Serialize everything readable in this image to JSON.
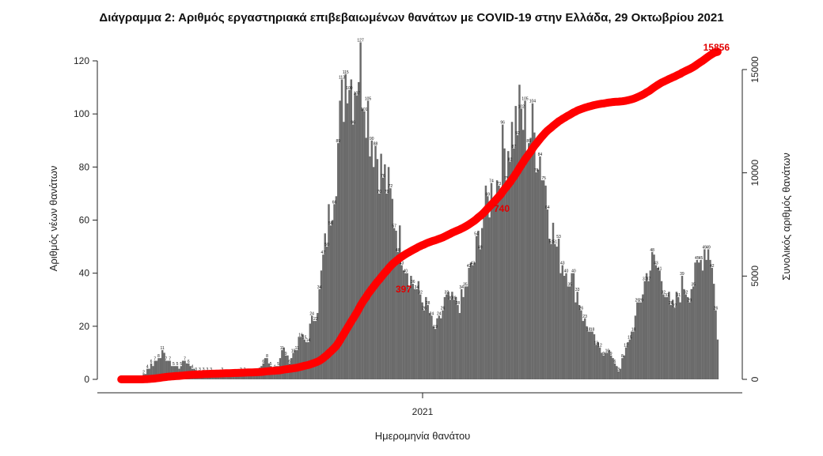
{
  "chart_data": {
    "type": "bar",
    "title": "Διάγραμμα 2: Αριθμός εργαστηριακά επιβεβαιωμένων θανάτων με COVID-19 στην Ελλάδα, 29 Οκτωβρίου 2021",
    "xlabel": "Ημερομηνία θανάτου",
    "ylabel": "Αριθμός νέων θανάτων",
    "y2label": "Συνολικός αριθμός θανάτων",
    "x_tick_labels": [
      "2021"
    ],
    "ylim": [
      0,
      120
    ],
    "y_ticks": [
      0,
      20,
      40,
      60,
      80,
      100,
      120
    ],
    "y2lim": [
      0,
      16000
    ],
    "y2_ticks": [
      0,
      5000,
      10000,
      15000
    ],
    "colors": {
      "bars": "#6b6b6b",
      "cumulative_line": "#ff0000",
      "cumulative_labels": "#e10000"
    },
    "daily_deaths_anchor_values": [
      0,
      0,
      0,
      0,
      2,
      5,
      7,
      10,
      7,
      5,
      4,
      7,
      5,
      3,
      3,
      3,
      2,
      3,
      2,
      2,
      2,
      3,
      2,
      2,
      3,
      8,
      4,
      5,
      12,
      7,
      11,
      16,
      14,
      22,
      28,
      47,
      62,
      78,
      100,
      121,
      110,
      119,
      112,
      95,
      88,
      78,
      73,
      63,
      53,
      45,
      38,
      34,
      30,
      27,
      18,
      22,
      30,
      29,
      28,
      30,
      39,
      44,
      57,
      64,
      71,
      75,
      86,
      89,
      96,
      100,
      94,
      93,
      88,
      77,
      61,
      51,
      45,
      41,
      37,
      31,
      22,
      18,
      13,
      10,
      11,
      7,
      3,
      10,
      17,
      24,
      33,
      42,
      44,
      40,
      35,
      25,
      30,
      36,
      33,
      38,
      44,
      51,
      46,
      16
    ],
    "cumulative_deaths_labels": [
      {
        "text": "397"
      },
      {
        "text": "740"
      },
      {
        "text": "15856",
        "value": 15856
      }
    ]
  }
}
